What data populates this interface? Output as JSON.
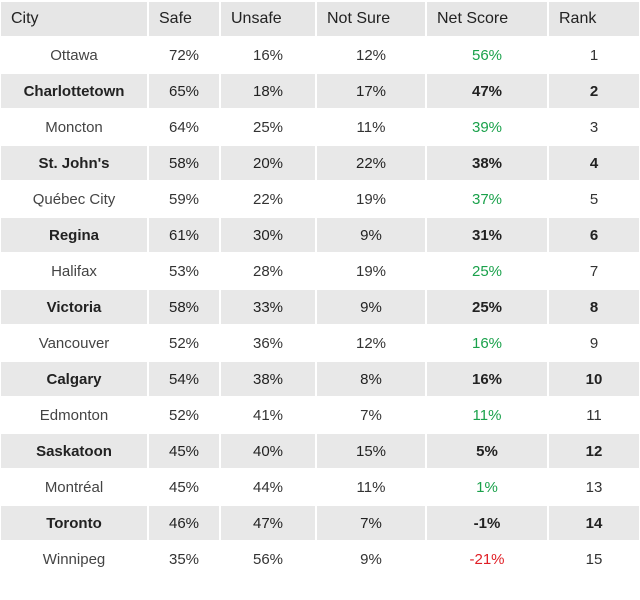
{
  "chart_data": {
    "type": "table",
    "columns": [
      "City",
      "Safe",
      "Unsafe",
      "Not Sure",
      "Net Score",
      "Rank"
    ],
    "rows": [
      [
        "Ottawa",
        "72%",
        "16%",
        "12%",
        "56%",
        "1"
      ],
      [
        "Charlottetown",
        "65%",
        "18%",
        "17%",
        "47%",
        "2"
      ],
      [
        "Moncton",
        "64%",
        "25%",
        "11%",
        "39%",
        "3"
      ],
      [
        "St. John's",
        "58%",
        "20%",
        "22%",
        "38%",
        "4"
      ],
      [
        "Québec City",
        "59%",
        "22%",
        "19%",
        "37%",
        "5"
      ],
      [
        "Regina",
        "61%",
        "30%",
        "9%",
        "31%",
        "6"
      ],
      [
        "Halifax",
        "53%",
        "28%",
        "19%",
        "25%",
        "7"
      ],
      [
        "Victoria",
        "58%",
        "33%",
        "9%",
        "25%",
        "8"
      ],
      [
        "Vancouver",
        "52%",
        "36%",
        "12%",
        "16%",
        "9"
      ],
      [
        "Calgary",
        "54%",
        "38%",
        "8%",
        "16%",
        "10"
      ],
      [
        "Edmonton",
        "52%",
        "41%",
        "7%",
        "11%",
        "11"
      ],
      [
        "Saskatoon",
        "45%",
        "40%",
        "15%",
        "5%",
        "12"
      ],
      [
        "Montréal",
        "45%",
        "44%",
        "11%",
        "1%",
        "13"
      ],
      [
        "Toronto",
        "46%",
        "47%",
        "7%",
        "-1%",
        "14"
      ],
      [
        "Winnipeg",
        "35%",
        "56%",
        "9%",
        "-21%",
        "15"
      ]
    ],
    "colors": {
      "positive": "#1aa14b",
      "negative": "#e01e25",
      "header_bg": "#e6e6e6",
      "band_bg": "#e8e8e8"
    }
  }
}
